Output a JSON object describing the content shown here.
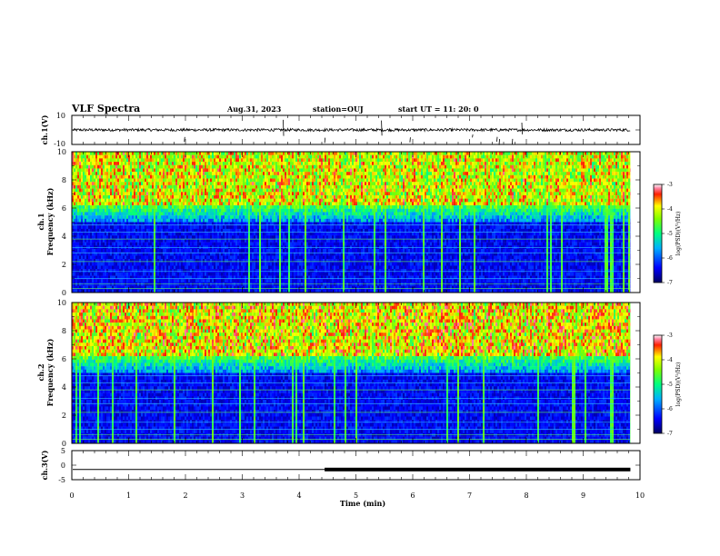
{
  "header": {
    "title": "VLF Spectra",
    "date": "Aug.31, 2023",
    "station": "station=OUJ",
    "start": "start UT =  11: 20: 0"
  },
  "chart_data": [
    {
      "type": "line",
      "name": "ch1-waveform",
      "ylabel": "ch.1(V)",
      "ylim": [
        -10,
        10
      ],
      "yticks": [
        "10",
        "-10"
      ],
      "baseline": 0,
      "noise_amplitude": 1.0,
      "spikes_min": [
        1.98,
        3.72,
        5.45,
        5.95,
        7.05,
        7.48,
        7.52,
        7.75,
        7.92,
        4.45
      ]
    },
    {
      "type": "heatmap",
      "name": "ch1-spectrogram",
      "ylabel": "ch.1 Frequency (kHz)",
      "ylim": [
        0,
        10
      ],
      "yticks": [
        "0",
        "2",
        "4",
        "6",
        "8",
        "10"
      ],
      "xlim": [
        0,
        10
      ],
      "data_extent_min": 9.83
    },
    {
      "type": "heatmap",
      "name": "ch2-spectrogram",
      "ylabel": "ch.2 Frequency (kHz)",
      "ylim": [
        0,
        10
      ],
      "yticks": [
        "0",
        "2",
        "4",
        "6",
        "8",
        "10"
      ],
      "xlim": [
        0,
        10
      ],
      "data_extent_min": 9.83
    },
    {
      "type": "line",
      "name": "ch3-waveform",
      "ylabel": "ch.3(V)",
      "ylim": [
        -5,
        5
      ],
      "yticks": [
        "5",
        "0",
        "-5"
      ],
      "level": -1.5,
      "thick_from_min": 4.45
    }
  ],
  "xaxis": {
    "label": "Time (min)",
    "ticks": [
      "0",
      "1",
      "2",
      "3",
      "4",
      "5",
      "6",
      "7",
      "8",
      "9",
      "10"
    ]
  },
  "colorbar": {
    "label": "log(PSD)(V²/Hz)",
    "ticks": [
      "-3",
      "-4",
      "-5",
      "-6",
      "-7"
    ],
    "range": [
      -7,
      -3
    ]
  },
  "colors": {
    "bg": "#000050",
    "trace": "#000000",
    "frame": "#000000"
  }
}
